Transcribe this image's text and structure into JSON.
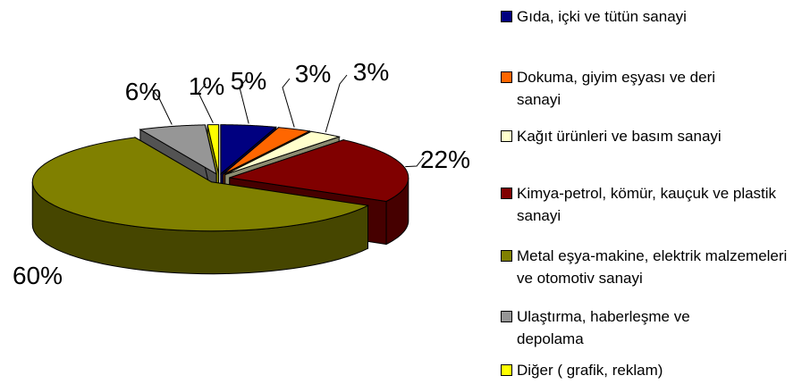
{
  "chart_data": {
    "type": "pie3d",
    "categories": [
      "Gıda, içki ve tütün sanayi",
      "Dokuma, giyim eşyası ve deri sanayi",
      "Kağıt ürünleri ve basım sanayi",
      "Kimya-petrol, kömür, kauçuk ve plastik sanayi",
      "Metal eşya-makine, elektrik malzemeleri ve otomotiv sanayi",
      "Ulaştırma, haberleşme ve depolama",
      "Diğer ( grafik, reklam)"
    ],
    "values": [
      5,
      3,
      3,
      22,
      60,
      6,
      1
    ],
    "value_labels": [
      "5%",
      "3%",
      "3%",
      "22%",
      "60%",
      "6%",
      "1%"
    ],
    "colors": [
      "#000080",
      "#ff6600",
      "#ffffcc",
      "#800000",
      "#808000",
      "#969696",
      "#ffff00"
    ],
    "legend": "right"
  }
}
